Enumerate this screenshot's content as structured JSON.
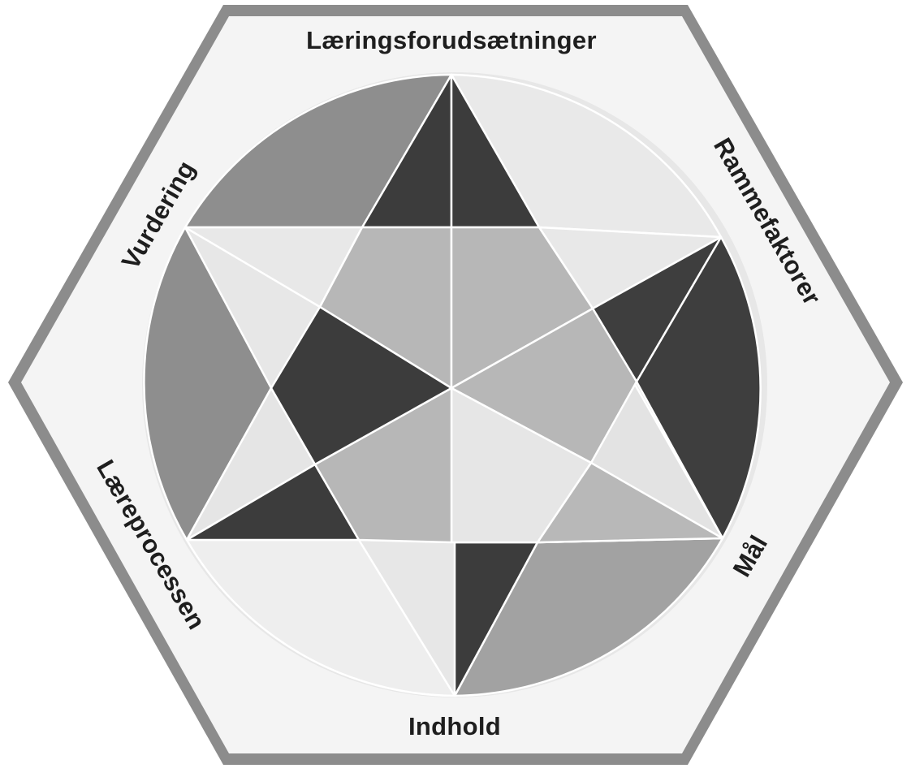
{
  "labels": {
    "top": "Læringsforudsætninger",
    "upper_right": "Rammefaktorer",
    "lower_right": "Mål",
    "bottom": "Indhold",
    "lower_left": "Læreprocessen",
    "upper_left": "Vurdering"
  },
  "colors": {
    "hexagon_border": "#8c8c8c",
    "hexagon_fill": "#f4f4f4",
    "dark": "#3c3c3c",
    "medium": "#8e8e8e",
    "light": "#b9b9b9",
    "very_light": "#e5e5e5"
  }
}
